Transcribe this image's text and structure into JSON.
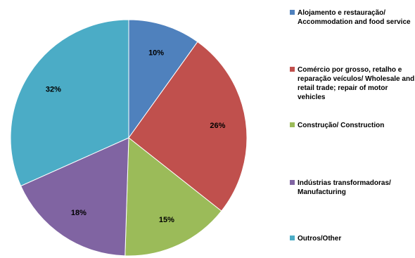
{
  "chart_data": {
    "type": "pie",
    "title": "",
    "slices": [
      {
        "label": "Alojamento e restauração/ Accommodation and food service",
        "value": 10,
        "value_label": "10%",
        "color": "#4F81BD"
      },
      {
        "label": "Comércio por grosso, retalho e reparação veículos/ Wholesale and retail trade; repair of motor vehicles",
        "value": 26,
        "value_label": "26%",
        "color": "#C0504D"
      },
      {
        "label": "Construção/ Construction",
        "value": 15,
        "value_label": "15%",
        "color": "#9BBB59"
      },
      {
        "label": "Indústrias transformadoras/ Manufacturing",
        "value": 18,
        "value_label": "18%",
        "color": "#8064A2"
      },
      {
        "label": "Outros/Other",
        "value": 32,
        "value_label": "32%",
        "color": "#4BACC6"
      }
    ],
    "legend_position": "right",
    "start_angle": "12 o'clock",
    "direction": "clockwise"
  }
}
